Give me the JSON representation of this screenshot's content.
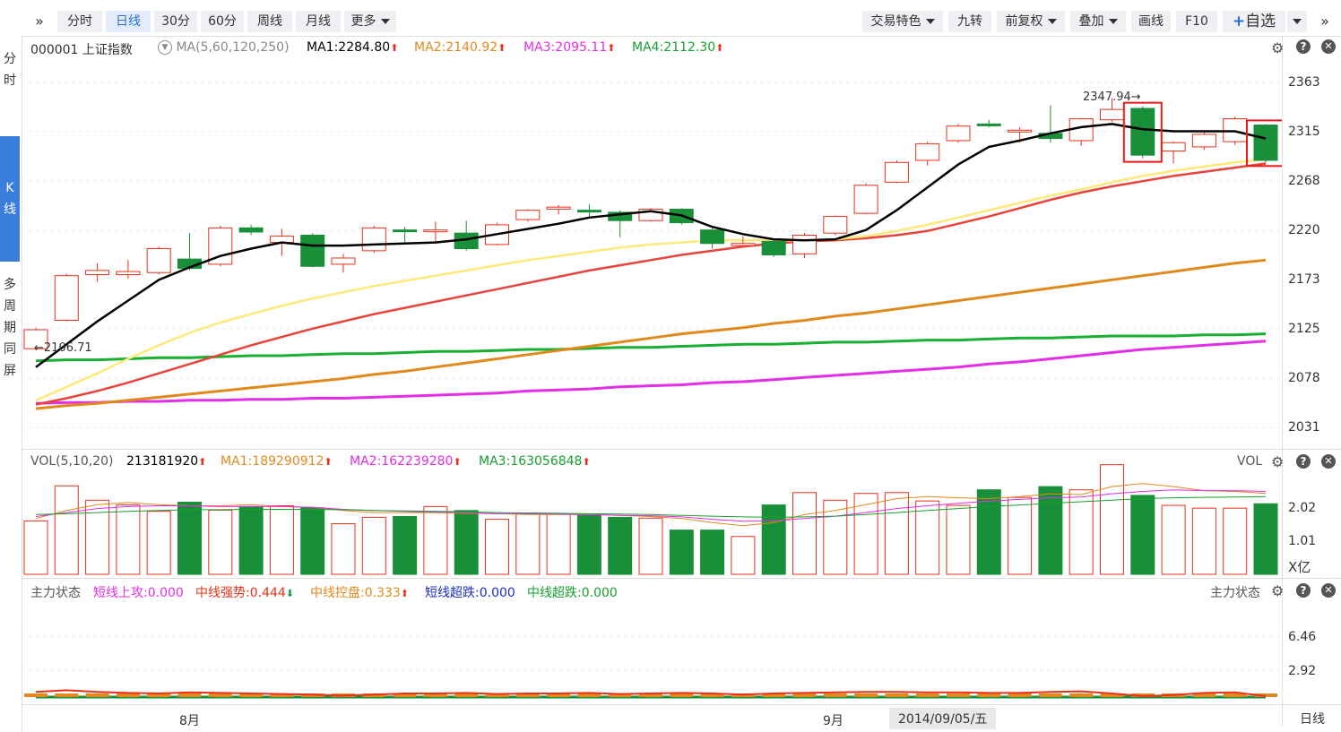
{
  "toolbar": {
    "periods": [
      {
        "label": "分时",
        "active": false
      },
      {
        "label": "日线",
        "active": true
      },
      {
        "label": "30分",
        "active": false
      },
      {
        "label": "60分",
        "active": false
      },
      {
        "label": "周线",
        "active": false
      },
      {
        "label": "月线",
        "active": false
      },
      {
        "label": "更多",
        "active": false
      }
    ],
    "right_items": [
      "交易特色",
      "九转",
      "前复权",
      "叠加",
      "画线",
      "F10"
    ],
    "watchlist_label": "自选"
  },
  "sidebar": {
    "top_label": "分时",
    "active_label": "K线",
    "bottom_label": "多周期同屏"
  },
  "price_panel": {
    "code_name": "000001 上证指数",
    "ma_setting": "MA(5,60,120,250)",
    "ma1": "MA1:2284.80",
    "ma2": "MA2:2140.92",
    "ma3": "MA3:2095.11",
    "ma4": "MA4:2112.30",
    "high_label": "2347.94",
    "low_label": "2106.71",
    "axis_ticks": [
      "2363",
      "2315",
      "2268",
      "2220",
      "2173",
      "2125",
      "2078",
      "2031"
    ]
  },
  "vol_panel": {
    "name": "VOL(5,10,20)",
    "value": "213181920",
    "ma1": "MA1:189290912",
    "ma2": "MA2:162239280",
    "ma3": "MA3:163056848",
    "right_label": "VOL",
    "axis_ticks": [
      "2.02",
      "1.01"
    ],
    "unit": "X亿"
  },
  "flow_panel": {
    "name": "主力状态",
    "short_up": "短线上攻:0.000",
    "mid_strong": "中线强势:0.444",
    "mid_control": "中线控盘:0.333",
    "short_over": "短线超跌:0.000",
    "mid_over": "中线超跌:0.000",
    "right_label": "主力状态",
    "axis_ticks": [
      "6.46",
      "2.92"
    ]
  },
  "bottom_axis": {
    "month1": "8月",
    "month2": "9月",
    "cursor_date": "2014/09/05/五",
    "period_label": "日线"
  },
  "colors": {
    "up": "#e8311a",
    "down": "#1a8f3a",
    "ma1": "#000000",
    "ma_yellow": "#ffe97a",
    "ma_red": "#e8433a",
    "ma_orange": "#e08a1e",
    "ma_green": "#18b030",
    "ma_magenta": "#e22ee6",
    "highlight": "#e81c1c"
  },
  "chart_data": {
    "type": "candlestick",
    "candles": [
      {
        "o": 2106.7,
        "c": 2125.0,
        "h": 2127.0,
        "l": 2105.0
      },
      {
        "o": 2134.0,
        "c": 2177.0,
        "h": 2179.0,
        "l": 2133.0
      },
      {
        "o": 2178.0,
        "c": 2182.0,
        "h": 2189.0,
        "l": 2171.0
      },
      {
        "o": 2178.0,
        "c": 2181.0,
        "h": 2192.0,
        "l": 2174.0
      },
      {
        "o": 2180.0,
        "c": 2203.0,
        "h": 2205.0,
        "l": 2178.0
      },
      {
        "o": 2193.0,
        "c": 2184.0,
        "h": 2218.0,
        "l": 2182.0
      },
      {
        "o": 2188.0,
        "c": 2223.0,
        "h": 2225.0,
        "l": 2186.0
      },
      {
        "o": 2223.0,
        "c": 2219.0,
        "h": 2226.0,
        "l": 2216.0
      },
      {
        "o": 2209.0,
        "c": 2215.0,
        "h": 2222.0,
        "l": 2196.0
      },
      {
        "o": 2216.0,
        "c": 2186.0,
        "h": 2218.0,
        "l": 2185.0
      },
      {
        "o": 2188.0,
        "c": 2194.0,
        "h": 2198.0,
        "l": 2180.0
      },
      {
        "o": 2201.0,
        "c": 2223.0,
        "h": 2225.0,
        "l": 2199.0
      },
      {
        "o": 2221.0,
        "c": 2220.0,
        "h": 2224.0,
        "l": 2209.0
      },
      {
        "o": 2220.0,
        "c": 2221.0,
        "h": 2229.0,
        "l": 2210.0
      },
      {
        "o": 2218.0,
        "c": 2203.0,
        "h": 2230.0,
        "l": 2201.0
      },
      {
        "o": 2207.0,
        "c": 2226.0,
        "h": 2228.0,
        "l": 2206.0
      },
      {
        "o": 2231.0,
        "c": 2240.0,
        "h": 2241.0,
        "l": 2229.0
      },
      {
        "o": 2241.0,
        "c": 2243.0,
        "h": 2245.0,
        "l": 2236.0
      },
      {
        "o": 2240.0,
        "c": 2239.0,
        "h": 2246.0,
        "l": 2234.0
      },
      {
        "o": 2238.0,
        "c": 2230.0,
        "h": 2240.0,
        "l": 2214.0
      },
      {
        "o": 2230.0,
        "c": 2241.0,
        "h": 2242.0,
        "l": 2229.0
      },
      {
        "o": 2241.0,
        "c": 2228.0,
        "h": 2242.0,
        "l": 2226.0
      },
      {
        "o": 2221.0,
        "c": 2208.0,
        "h": 2223.0,
        "l": 2203.0
      },
      {
        "o": 2206.0,
        "c": 2208.0,
        "h": 2215.0,
        "l": 2205.0
      },
      {
        "o": 2210.0,
        "c": 2197.0,
        "h": 2212.0,
        "l": 2195.0
      },
      {
        "o": 2198.0,
        "c": 2216.0,
        "h": 2218.0,
        "l": 2194.0
      },
      {
        "o": 2218.0,
        "c": 2234.0,
        "h": 2235.0,
        "l": 2216.0
      },
      {
        "o": 2237.0,
        "c": 2264.0,
        "h": 2266.0,
        "l": 2236.0
      },
      {
        "o": 2267.0,
        "c": 2286.0,
        "h": 2288.0,
        "l": 2266.0
      },
      {
        "o": 2288.0,
        "c": 2304.0,
        "h": 2306.0,
        "l": 2283.0
      },
      {
        "o": 2307.0,
        "c": 2321.0,
        "h": 2323.0,
        "l": 2305.0
      },
      {
        "o": 2323.0,
        "c": 2322.0,
        "h": 2327.0,
        "l": 2320.0
      },
      {
        "o": 2316.0,
        "c": 2317.0,
        "h": 2320.0,
        "l": 2305.0
      },
      {
        "o": 2314.0,
        "c": 2309.0,
        "h": 2341.0,
        "l": 2305.0
      },
      {
        "o": 2307.0,
        "c": 2328.0,
        "h": 2329.0,
        "l": 2302.0
      },
      {
        "o": 2327.0,
        "c": 2337.0,
        "h": 2347.9,
        "l": 2325.0
      },
      {
        "o": 2338.0,
        "c": 2293.0,
        "h": 2340.0,
        "l": 2290.0
      },
      {
        "o": 2297.0,
        "c": 2305.0,
        "h": 2306.0,
        "l": 2285.0
      },
      {
        "o": 2301.0,
        "c": 2313.0,
        "h": 2315.0,
        "l": 2298.0
      },
      {
        "o": 2306.0,
        "c": 2328.0,
        "h": 2330.0,
        "l": 2303.0
      },
      {
        "o": 2322.0,
        "c": 2288.0,
        "h": 2323.0,
        "l": 2286.0
      }
    ],
    "ma_black": [
      2089,
      2111,
      2133,
      2153,
      2173,
      2185,
      2196,
      2203,
      2209,
      2206,
      2206,
      2207,
      2208,
      2209,
      2212,
      2217,
      2222,
      2227,
      2233,
      2236,
      2239,
      2235,
      2224,
      2217,
      2212,
      2211,
      2212,
      2221,
      2240,
      2262,
      2284,
      2301,
      2307,
      2314,
      2320,
      2323,
      2318,
      2316,
      2316,
      2316,
      2309
    ],
    "ma_yellow": [
      2057,
      2070,
      2083,
      2097,
      2110,
      2122,
      2132,
      2140,
      2148,
      2155,
      2161,
      2167,
      2172,
      2177,
      2182,
      2187,
      2192,
      2196,
      2200,
      2204,
      2207,
      2209,
      2211,
      2211,
      2211,
      2211,
      2212,
      2215,
      2220,
      2226,
      2233,
      2240,
      2247,
      2254,
      2260,
      2267,
      2273,
      2278,
      2282,
      2286,
      2289
    ],
    "ma_red": [
      2053,
      2059,
      2066,
      2074,
      2083,
      2092,
      2101,
      2110,
      2118,
      2126,
      2133,
      2140,
      2146,
      2152,
      2158,
      2164,
      2170,
      2176,
      2182,
      2187,
      2192,
      2197,
      2201,
      2205,
      2208,
      2210,
      2211,
      2213,
      2216,
      2220,
      2227,
      2234,
      2242,
      2250,
      2257,
      2263,
      2268,
      2273,
      2277,
      2281,
      2285
    ],
    "ma_orange": [
      2049,
      2052,
      2054,
      2057,
      2060,
      2063,
      2066,
      2069,
      2072,
      2075,
      2078,
      2082,
      2085,
      2089,
      2093,
      2097,
      2101,
      2105,
      2109,
      2113,
      2117,
      2121,
      2124,
      2127,
      2131,
      2134,
      2138,
      2141,
      2145,
      2149,
      2153,
      2157,
      2161,
      2165,
      2169,
      2173,
      2177,
      2181,
      2185,
      2189,
      2192
    ],
    "ma_green": [
      2095,
      2096,
      2096,
      2097,
      2098,
      2098,
      2099,
      2100,
      2100,
      2101,
      2102,
      2102,
      2103,
      2104,
      2104,
      2105,
      2106,
      2106,
      2107,
      2108,
      2108,
      2109,
      2110,
      2111,
      2111,
      2112,
      2113,
      2113,
      2114,
      2115,
      2115,
      2116,
      2117,
      2117,
      2118,
      2119,
      2119,
      2119,
      2120,
      2120,
      2121
    ],
    "ma_magenta": [
      2054,
      2055,
      2055,
      2056,
      2056,
      2057,
      2057,
      2058,
      2058,
      2059,
      2059,
      2060,
      2061,
      2062,
      2063,
      2064,
      2066,
      2067,
      2068,
      2070,
      2071,
      2072,
      2074,
      2075,
      2077,
      2079,
      2081,
      2083,
      2085,
      2087,
      2089,
      2092,
      2094,
      2097,
      2100,
      2103,
      2106,
      2108,
      2110,
      2112,
      2114
    ],
    "ylim": [
      2031,
      2363
    ],
    "volume_yi": [
      1.34,
      2.22,
      1.86,
      1.74,
      1.58,
      1.81,
      1.61,
      1.7,
      1.72,
      1.67,
      1.27,
      1.43,
      1.45,
      1.7,
      1.6,
      1.38,
      1.52,
      1.51,
      1.48,
      1.43,
      1.41,
      1.11,
      1.11,
      0.95,
      1.74,
      2.05,
      1.86,
      2.03,
      2.05,
      1.84,
      1.73,
      2.12,
      1.93,
      2.2,
      2.12,
      2.75,
      1.98,
      1.73,
      1.66,
      1.66,
      1.77
    ],
    "vol_ma_yellow": [
      1.4,
      1.6,
      1.75,
      1.8,
      1.75,
      1.72,
      1.72,
      1.75,
      1.7,
      1.68,
      1.6,
      1.55,
      1.55,
      1.55,
      1.53,
      1.52,
      1.5,
      1.5,
      1.5,
      1.48,
      1.45,
      1.4,
      1.3,
      1.22,
      1.3,
      1.5,
      1.6,
      1.75,
      1.9,
      1.95,
      1.92,
      1.9,
      1.95,
      2.02,
      2.0,
      2.2,
      2.28,
      2.2,
      2.1,
      2.08,
      2.03
    ],
    "vol_ma_pink": [
      1.45,
      1.55,
      1.65,
      1.7,
      1.72,
      1.72,
      1.7,
      1.7,
      1.7,
      1.68,
      1.63,
      1.6,
      1.58,
      1.56,
      1.55,
      1.52,
      1.52,
      1.51,
      1.5,
      1.48,
      1.47,
      1.44,
      1.38,
      1.33,
      1.34,
      1.4,
      1.46,
      1.55,
      1.65,
      1.72,
      1.78,
      1.84,
      1.88,
      1.92,
      1.94,
      2.02,
      2.08,
      2.12,
      2.1,
      2.1,
      2.08
    ],
    "vol_ma_green": [
      1.5,
      1.52,
      1.55,
      1.58,
      1.6,
      1.62,
      1.62,
      1.63,
      1.63,
      1.63,
      1.62,
      1.6,
      1.59,
      1.58,
      1.57,
      1.55,
      1.54,
      1.53,
      1.52,
      1.51,
      1.5,
      1.48,
      1.46,
      1.44,
      1.43,
      1.44,
      1.46,
      1.5,
      1.55,
      1.6,
      1.65,
      1.7,
      1.74,
      1.78,
      1.82,
      1.86,
      1.9,
      1.92,
      1.93,
      1.94,
      1.95
    ],
    "vol_ylim": [
      0,
      2.9
    ],
    "flow_red": [
      0.3,
      0.6,
      0.3,
      0.1,
      0.0,
      0.2,
      0.1,
      0.0,
      -0.1,
      -0.2,
      -0.4,
      -0.2,
      0.0,
      0.0,
      0.1,
      -0.1,
      0.0,
      0.0,
      0.1,
      -0.1,
      0.0,
      0.1,
      0.0,
      -0.2,
      0.0,
      0.1,
      0.2,
      0.3,
      0.3,
      0.2,
      0.2,
      0.1,
      0.1,
      0.3,
      0.4,
      0.0,
      -0.5,
      -0.3,
      0.1,
      0.2,
      -0.5
    ],
    "flow_orange": [
      0.2,
      0.2,
      0.2,
      0.2,
      0.2,
      0.2,
      0.2,
      0.2,
      0.2,
      0.2,
      0.2,
      0.2,
      0.2,
      0.2,
      0.2,
      0.2,
      0.2,
      0.2,
      0.2,
      0.2,
      0.2,
      0.2,
      0.2,
      0.2,
      0.2,
      0.2,
      0.2,
      0.2,
      0.3,
      0.3,
      0.3,
      0.3,
      0.3,
      0.3,
      0.4,
      0.4,
      0.4,
      0.4,
      0.3,
      0.3,
      0.3
    ],
    "flow_ylim": [
      -1,
      10
    ]
  }
}
